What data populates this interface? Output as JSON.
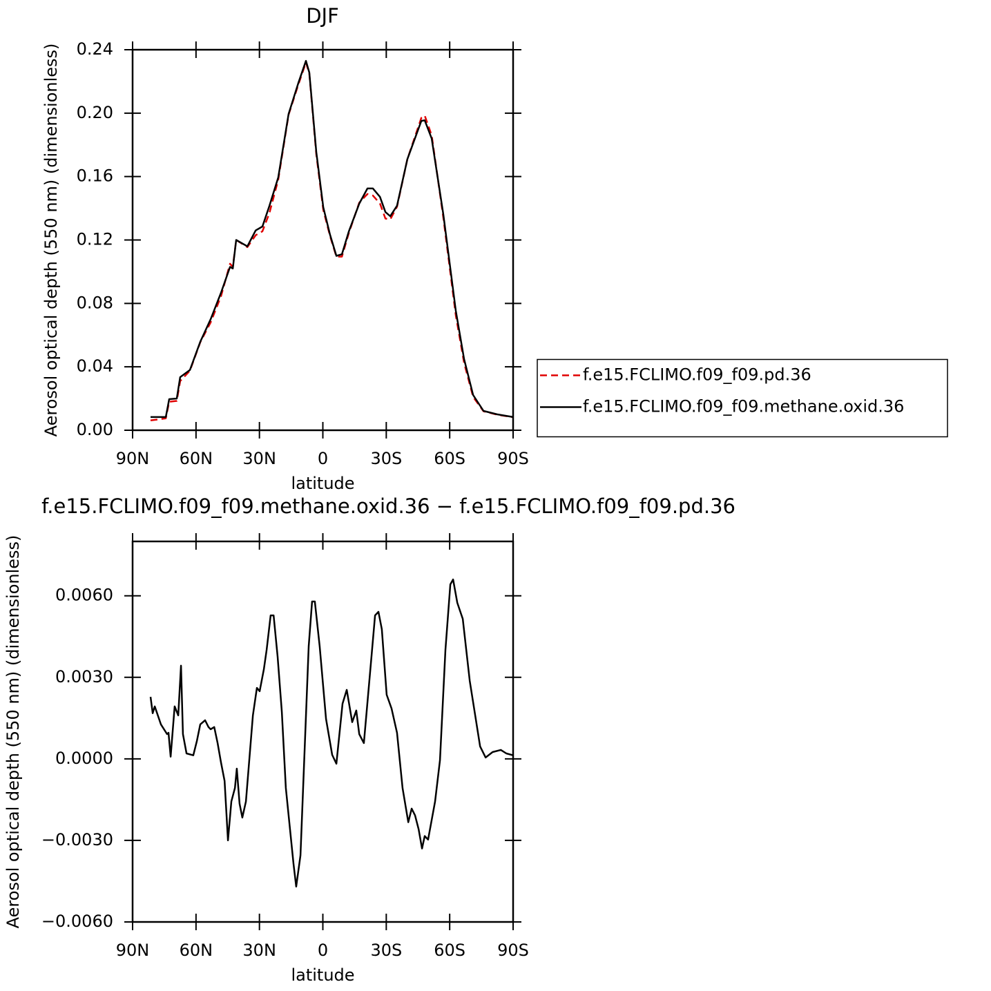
{
  "chart_data": [
    {
      "type": "line",
      "title": "DJF",
      "xlabel": "latitude",
      "ylabel": "Aerosol optical depth (550 nm) (dimensionless)",
      "xlim": [
        90,
        -90
      ],
      "xticks": [
        {
          "value": 90,
          "label": "90N"
        },
        {
          "value": 60,
          "label": "60N"
        },
        {
          "value": 30,
          "label": "30N"
        },
        0,
        {
          "value": -30,
          "label": "30S"
        },
        {
          "value": -60,
          "label": "60S"
        },
        {
          "value": -90,
          "label": "90S"
        }
      ],
      "ylim": [
        0,
        0.24
      ],
      "yticks": [
        {
          "value": 0,
          "label": "0.00"
        },
        0.04,
        0.08,
        0.12,
        0.16,
        {
          "value": 0.2,
          "label": "0.20"
        },
        0.24
      ],
      "legend": "right",
      "x": [
        81.5,
        74.3,
        72.7,
        69.1,
        67.5,
        62.9,
        58,
        53.1,
        48.2,
        43.9,
        42.6,
        41,
        35.7,
        31.8,
        28.6,
        25.3,
        21.1,
        16.2,
        11.6,
        8,
        6.4,
        3.1,
        -0.2,
        -3.4,
        -6.4,
        -9,
        -12.3,
        -17.2,
        -21.1,
        -23.7,
        -27,
        -29.6,
        -31.9,
        -35.1,
        -40,
        -46.6,
        -48.2,
        -51.5,
        -57,
        -62.9,
        -66.8,
        -71.1,
        -76,
        -82.5,
        -90
      ],
      "series": [
        {
          "name": "f.e15.FCLIMO.f09_f09.pd.36",
          "color": "#e00000",
          "dash": true,
          "values": [
            0.0062,
            0.0075,
            0.018,
            0.0185,
            0.031,
            0.0375,
            0.0555,
            0.068,
            0.0845,
            0.105,
            0.103,
            0.12,
            0.1155,
            0.123,
            0.1255,
            0.137,
            0.158,
            0.199,
            0.218,
            0.232,
            0.225,
            0.174,
            0.139,
            0.1225,
            0.1095,
            0.1095,
            0.1245,
            0.1435,
            0.149,
            0.148,
            0.143,
            0.1335,
            0.133,
            0.141,
            0.171,
            0.197,
            0.1985,
            0.186,
            0.134,
            0.0725,
            0.0425,
            0.021,
            0.012,
            0.0098,
            0.0082
          ]
        },
        {
          "name": "f.e15.FCLIMO.f09_f09.methane.oxid.36",
          "color": "#000000",
          "dash": false,
          "values": [
            0.0083,
            0.0083,
            0.0196,
            0.02,
            0.0335,
            0.038,
            0.0558,
            0.07,
            0.0867,
            0.103,
            0.102,
            0.12,
            0.116,
            0.126,
            0.1285,
            0.1415,
            0.1594,
            0.1995,
            0.219,
            0.233,
            0.2256,
            0.1755,
            0.1407,
            0.1233,
            0.11,
            0.111,
            0.1255,
            0.1429,
            0.1525,
            0.1525,
            0.1472,
            0.1376,
            0.135,
            0.1416,
            0.171,
            0.1951,
            0.1955,
            0.184,
            0.136,
            0.0754,
            0.0449,
            0.0222,
            0.0122,
            0.01,
            0.0083
          ]
        }
      ]
    },
    {
      "type": "line",
      "title": "f.e15.FCLIMO.f09_f09.methane.oxid.36 − f.e15.FCLIMO.f09_f09.pd.36",
      "xlabel": "latitude",
      "ylabel": "Aerosol optical depth (550 nm) (dimensionless)",
      "xlim": [
        90,
        -90
      ],
      "xticks": [
        {
          "value": 90,
          "label": "90N"
        },
        {
          "value": 60,
          "label": "60N"
        },
        {
          "value": 30,
          "label": "30N"
        },
        0,
        {
          "value": -30,
          "label": "30S"
        },
        {
          "value": -60,
          "label": "60S"
        },
        {
          "value": -90,
          "label": "90S"
        }
      ],
      "ylim": [
        -0.006,
        0.008
      ],
      "yticks": [
        {
          "value": -0.006,
          "label": "−0.0060"
        },
        {
          "value": -0.003,
          "label": "−0.0030"
        },
        {
          "value": 0,
          "label": "0.0000"
        },
        {
          "value": 0.003,
          "label": "0.0030"
        },
        {
          "value": 0.006,
          "label": "0.0060"
        }
      ],
      "color": "#000000",
      "x": [
        81.5,
        80.5,
        79.5,
        76.6,
        73.7,
        73,
        72,
        70.1,
        68.4,
        67.1,
        66.2,
        64.5,
        61.3,
        59.6,
        58,
        55.7,
        54.1,
        53.1,
        51.4,
        49.8,
        48.2,
        46.5,
        44.9,
        43.3,
        41.6,
        40.7,
        39.4,
        38.1,
        36.4,
        33.1,
        31.2,
        29.9,
        27.9,
        26.6,
        24.7,
        23.3,
        21.4,
        19.4,
        17.5,
        13.9,
        12.6,
        10.6,
        6.7,
        5.1,
        3.8,
        1.5,
        -1.5,
        -4.4,
        -6.4,
        -9.3,
        -11.3,
        -13.9,
        -15.8,
        -17.2,
        -19.4,
        -23,
        -24.7,
        -26.3,
        -27.9,
        -30.2,
        -32.5,
        -35.1,
        -37.7,
        -40.4,
        -42,
        -43.6,
        -45.3,
        -46.9,
        -48.2,
        -49.8,
        -53.1,
        -55.4,
        -58,
        -60.3,
        -61.6,
        -63.6,
        -66.2,
        -69.5,
        -74.4,
        -77,
        -80.3,
        -84.2,
        -86.8,
        -90
      ],
      "values": [
        0.00228,
        0.00168,
        0.00193,
        0.00127,
        0.00091,
        0.00096,
        8e-05,
        0.00193,
        0.0016,
        0.00343,
        0.00091,
        0.0002,
        0.00013,
        0.00066,
        0.00127,
        0.00142,
        0.00117,
        0.00109,
        0.00117,
        0.00058,
        -0.00013,
        -0.00081,
        -0.003,
        -0.00157,
        -0.00107,
        -0.00036,
        -0.00165,
        -0.00216,
        -0.00157,
        0.0016,
        0.00261,
        0.00249,
        0.0033,
        0.00401,
        0.00528,
        0.00528,
        0.00376,
        0.00173,
        -0.00107,
        -0.00386,
        -0.0047,
        -0.00355,
        0.00414,
        0.00579,
        0.00579,
        0.00414,
        0.00147,
        0.00015,
        -0.00018,
        0.00203,
        0.00254,
        0.00135,
        0.00178,
        0.00091,
        0.00058,
        0.00376,
        0.00528,
        0.00541,
        0.00477,
        0.00236,
        0.00185,
        0.00096,
        -0.00107,
        -0.00233,
        -0.00183,
        -0.00208,
        -0.00259,
        -0.0033,
        -0.00284,
        -0.00297,
        -0.00157,
        -5e-05,
        0.00401,
        0.00642,
        0.0066,
        0.00574,
        0.00515,
        0.00287,
        0.00046,
        5e-05,
        0.00025,
        0.00033,
        0.0002,
        0.00013
      ]
    }
  ]
}
